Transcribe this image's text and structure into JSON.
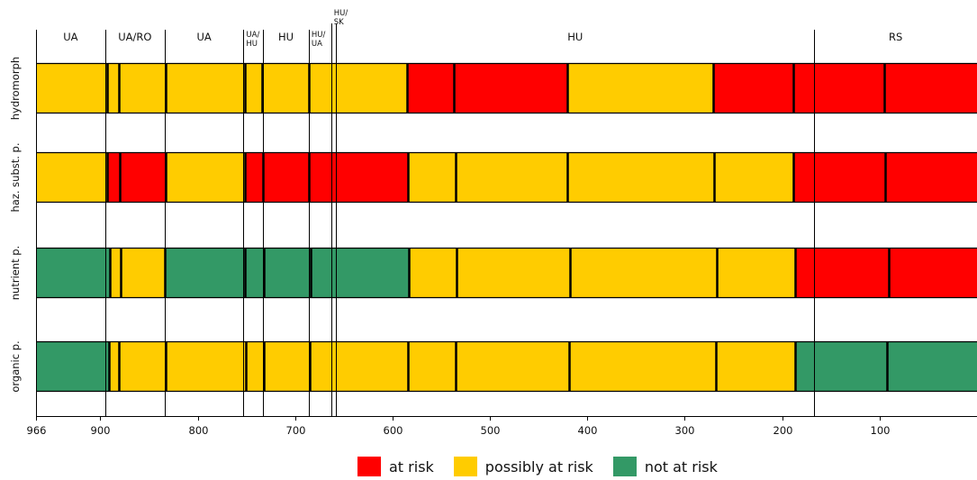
{
  "chart_data": {
    "type": "bar",
    "orientation": "horizontal-stacked-segments",
    "x_axis": {
      "range": [
        966,
        0
      ],
      "ticks": [
        966,
        900,
        800,
        700,
        600,
        500,
        400,
        300,
        200,
        100
      ],
      "tick_labels": [
        "966",
        "900",
        "800",
        "700",
        "600",
        "500",
        "400",
        "300",
        "200",
        "100"
      ]
    },
    "country_sections": [
      {
        "label": "UA",
        "from": 966,
        "to": 895
      },
      {
        "label": "UA/RO",
        "from": 895,
        "to": 834
      },
      {
        "label": "UA",
        "from": 834,
        "to": 753
      },
      {
        "label": "UA/\nHU",
        "from": 753,
        "to": 733
      },
      {
        "label": "HU",
        "from": 733,
        "to": 686
      },
      {
        "label": "HU/\nUA",
        "from": 686,
        "to": 663
      },
      {
        "label": "HU/\nSK",
        "from": 663,
        "to": 658
      },
      {
        "label": "HU",
        "from": 658,
        "to": 167
      },
      {
        "label": "RS",
        "from": 167,
        "to": 0
      }
    ],
    "rows": [
      {
        "label": "hydromorph",
        "segments": [
          {
            "from": 966,
            "to": 893,
            "status": "possibly"
          },
          {
            "from": 893,
            "to": 881,
            "status": "possibly"
          },
          {
            "from": 881,
            "to": 833,
            "status": "possibly"
          },
          {
            "from": 833,
            "to": 752,
            "status": "possibly"
          },
          {
            "from": 752,
            "to": 734,
            "status": "possibly"
          },
          {
            "from": 734,
            "to": 686,
            "status": "possibly"
          },
          {
            "from": 686,
            "to": 585,
            "status": "possibly"
          },
          {
            "from": 585,
            "to": 537,
            "status": "risk"
          },
          {
            "from": 537,
            "to": 421,
            "status": "risk"
          },
          {
            "from": 421,
            "to": 271,
            "status": "possibly"
          },
          {
            "from": 271,
            "to": 189,
            "status": "risk"
          },
          {
            "from": 189,
            "to": 95,
            "status": "risk"
          },
          {
            "from": 95,
            "to": 0,
            "status": "risk"
          }
        ]
      },
      {
        "label": "haz. subst. p.",
        "segments": [
          {
            "from": 966,
            "to": 893,
            "status": "possibly"
          },
          {
            "from": 893,
            "to": 880,
            "status": "risk"
          },
          {
            "from": 880,
            "to": 833,
            "status": "risk"
          },
          {
            "from": 833,
            "to": 752,
            "status": "possibly"
          },
          {
            "from": 752,
            "to": 733,
            "status": "risk"
          },
          {
            "from": 733,
            "to": 686,
            "status": "risk"
          },
          {
            "from": 686,
            "to": 584,
            "status": "risk"
          },
          {
            "from": 584,
            "to": 535,
            "status": "possibly"
          },
          {
            "from": 535,
            "to": 421,
            "status": "possibly"
          },
          {
            "from": 421,
            "to": 270,
            "status": "possibly"
          },
          {
            "from": 270,
            "to": 189,
            "status": "possibly"
          },
          {
            "from": 189,
            "to": 94,
            "status": "risk"
          },
          {
            "from": 94,
            "to": 0,
            "status": "risk"
          }
        ]
      },
      {
        "label": "nutrient p.",
        "segments": [
          {
            "from": 966,
            "to": 890,
            "status": "not"
          },
          {
            "from": 890,
            "to": 879,
            "status": "possibly"
          },
          {
            "from": 879,
            "to": 834,
            "status": "possibly"
          },
          {
            "from": 834,
            "to": 752,
            "status": "not"
          },
          {
            "from": 752,
            "to": 732,
            "status": "not"
          },
          {
            "from": 732,
            "to": 684,
            "status": "not"
          },
          {
            "from": 684,
            "to": 583,
            "status": "not"
          },
          {
            "from": 583,
            "to": 534,
            "status": "possibly"
          },
          {
            "from": 534,
            "to": 418,
            "status": "possibly"
          },
          {
            "from": 418,
            "to": 267,
            "status": "possibly"
          },
          {
            "from": 267,
            "to": 187,
            "status": "possibly"
          },
          {
            "from": 187,
            "to": 91,
            "status": "risk"
          },
          {
            "from": 91,
            "to": 0,
            "status": "risk"
          }
        ]
      },
      {
        "label": "organic p.",
        "segments": [
          {
            "from": 966,
            "to": 891,
            "status": "not"
          },
          {
            "from": 891,
            "to": 881,
            "status": "possibly"
          },
          {
            "from": 881,
            "to": 833,
            "status": "possibly"
          },
          {
            "from": 833,
            "to": 751,
            "status": "possibly"
          },
          {
            "from": 751,
            "to": 732,
            "status": "possibly"
          },
          {
            "from": 732,
            "to": 685,
            "status": "possibly"
          },
          {
            "from": 685,
            "to": 584,
            "status": "possibly"
          },
          {
            "from": 584,
            "to": 535,
            "status": "possibly"
          },
          {
            "from": 535,
            "to": 419,
            "status": "possibly"
          },
          {
            "from": 419,
            "to": 268,
            "status": "possibly"
          },
          {
            "from": 268,
            "to": 187,
            "status": "possibly"
          },
          {
            "from": 187,
            "to": 92,
            "status": "not"
          },
          {
            "from": 92,
            "to": 0,
            "status": "not"
          }
        ]
      }
    ],
    "legend_position": "bottom",
    "legend": [
      {
        "key": "risk",
        "label": "at risk",
        "color": "#ff0000"
      },
      {
        "key": "possibly",
        "label": "possibly at risk",
        "color": "#ffcc00"
      },
      {
        "key": "not",
        "label": "not at risk",
        "color": "#339966"
      }
    ]
  }
}
